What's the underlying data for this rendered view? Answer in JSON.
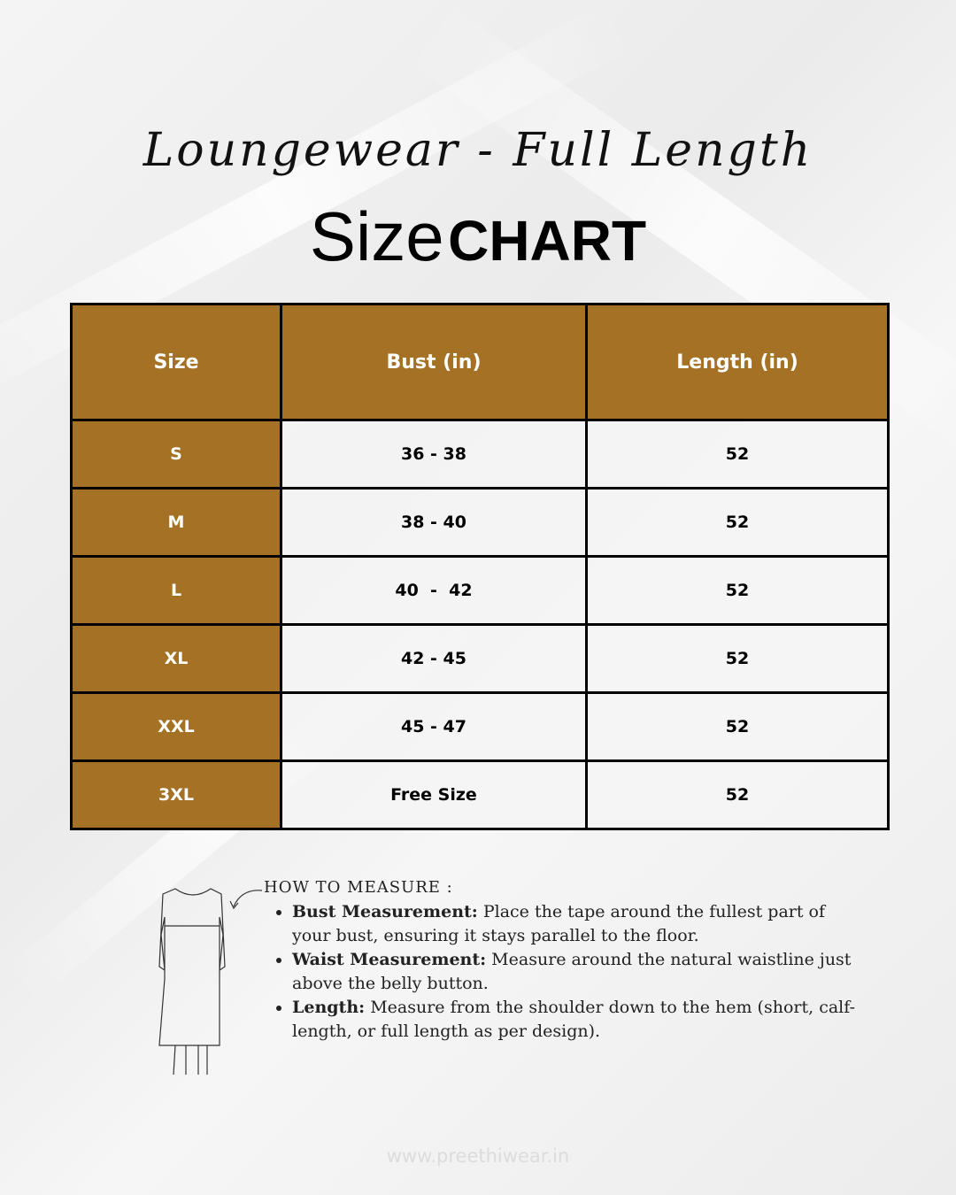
{
  "subtitle": "Loungewear - Full Length",
  "title": {
    "part1": "Size",
    "part2": "CHART"
  },
  "colors": {
    "header_bg": "#A57225",
    "header_text": "#FFFFFF",
    "border": "#000000"
  },
  "table": {
    "headers": [
      "Size",
      "Bust (in)",
      "Length (in)"
    ],
    "rows": [
      [
        "S",
        "36 - 38",
        "52"
      ],
      [
        "M",
        "38 - 40",
        "52"
      ],
      [
        "L",
        "40  -  42",
        "52"
      ],
      [
        "XL",
        "42 - 45",
        "52"
      ],
      [
        "XXL",
        "45 - 47",
        "52"
      ],
      [
        "3XL",
        "Free Size",
        "52"
      ]
    ]
  },
  "how_to_measure": {
    "heading": "HOW TO MEASURE :",
    "items": [
      {
        "label": "Bust Measurement:",
        "text": " Place the tape around the fullest part of your bust, ensuring it stays parallel to the floor."
      },
      {
        "label": "Waist Measurement:",
        "text": " Measure around the natural waistline just above the belly button."
      },
      {
        "label": "Length:",
        "text": " Measure from the shoulder down to the hem (short, calf-length, or full length as per design)."
      }
    ],
    "illustration_icon": "dress-outline-icon",
    "arrow_icon": "curved-arrow-icon"
  },
  "footer": "www.preethiwear.in"
}
